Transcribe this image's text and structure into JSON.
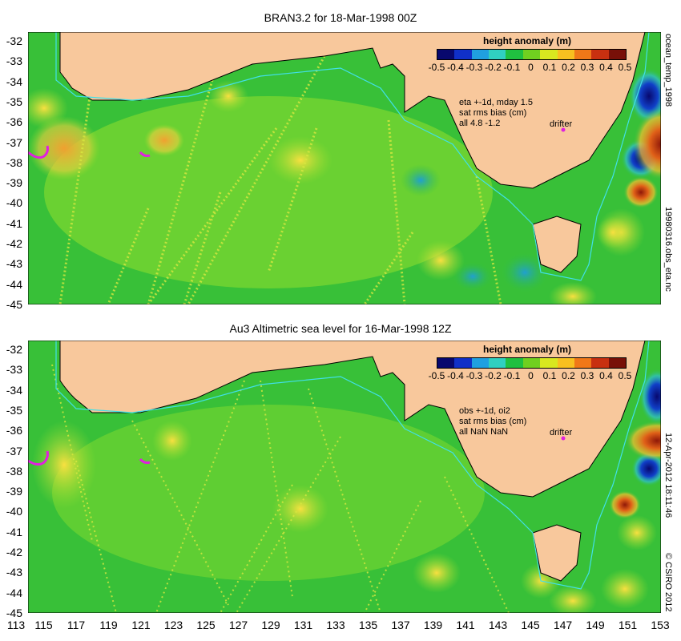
{
  "panels": [
    {
      "title": "BRAN3.2 for 18-Mar-1998 00Z",
      "info": [
        "eta +-1d, mday 1.5",
        "sat rms bias (cm)",
        "all 4.8 -1.2"
      ],
      "drifter_label": "drifter",
      "side_label_right": "ocean_temp_1998",
      "side_label_lower": "19980316.obs_eta.nc"
    },
    {
      "title": "Au3 Altimetric sea level  for 16-Mar-1998 12Z",
      "info": [
        "obs +-1d, oi2",
        "sat rms bias (cm)",
        "all NaN NaN"
      ],
      "drifter_label": "drifter",
      "side_label_right": "12-Apr-2012 18:11:46",
      "side_label_lower": "© CSIRO 2012"
    }
  ],
  "legend": {
    "title": "height anomaly (m)",
    "ticks": [
      "-0.5",
      "-0.4",
      "-0.3",
      "-0.2",
      "-0.1",
      "0",
      "0.1",
      "0.2",
      "0.3",
      "0.4",
      "0.5"
    ],
    "colors": [
      "#08086e",
      "#1030c8",
      "#20a0e0",
      "#30d0c0",
      "#20c040",
      "#70d020",
      "#d8e820",
      "#f8c020",
      "#f07818",
      "#c83010",
      "#781008"
    ]
  },
  "y_ticks": [
    "-32",
    "-33",
    "-34",
    "-35",
    "-36",
    "-37",
    "-38",
    "-39",
    "-40",
    "-41",
    "-42",
    "-43",
    "-44",
    "-45"
  ],
  "x_ticks": [
    "113",
    "115",
    "117",
    "119",
    "121",
    "123",
    "125",
    "127",
    "129",
    "131",
    "133",
    "135",
    "137",
    "139",
    "141",
    "143",
    "145",
    "147",
    "149",
    "151",
    "153"
  ],
  "colors": {
    "land": "#f8c89c",
    "ocean": "#30c040",
    "coast_contour": "#40e0e8",
    "drifter": "#e020e0"
  }
}
